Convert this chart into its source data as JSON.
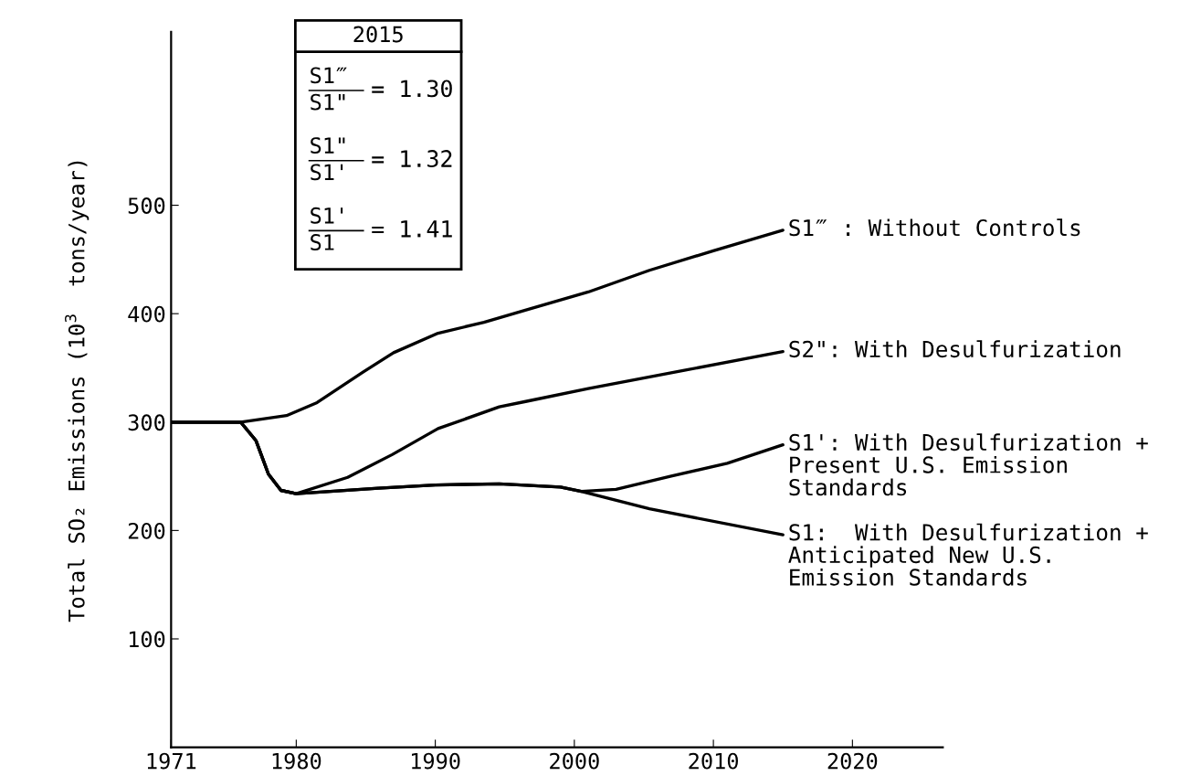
{
  "chart_data": {
    "type": "line",
    "ylabel": "Total SO₂ Emissions (10$^{3}$  tons/year)",
    "xlim": [
      1971,
      2026.5
    ],
    "xticks": [
      1971,
      1980,
      1990,
      2000,
      2010,
      2020
    ],
    "ylim": [
      0,
      660
    ],
    "yticks": [
      100,
      200,
      300,
      400,
      500
    ],
    "grid": false,
    "legend": false,
    "marker": "none",
    "line_style": "solid",
    "annotations": [
      "2015",
      "S1‴",
      "S1\"",
      "= 1.30",
      "S1\"",
      "S1'",
      "= 1.32",
      "S1'",
      "S1",
      "= 1.41"
    ],
    "series": [
      {
        "name": "S1‴ : Without Controls",
        "color": "#000000",
        "x": [
          1971,
          1976,
          1979.3,
          1981.5,
          1984.8,
          1987,
          1990.2,
          1993.5,
          1996.7,
          2001,
          2005.4,
          2010,
          2015
        ],
        "values": [
          300,
          300,
          306,
          318,
          346,
          364,
          382,
          392,
          404,
          420,
          440,
          458,
          477
        ]
      },
      {
        "name": "S2\": With Desulfurization",
        "color": "#000000",
        "x": [
          1971,
          1976,
          1977.1,
          1978,
          1978.9,
          1980,
          1983.7,
          1986.9,
          1990.2,
          1994.6,
          1996.5,
          2001,
          2008,
          2015
        ],
        "values": [
          300,
          300,
          283,
          252,
          237,
          234,
          249,
          270,
          294,
          314,
          319,
          331,
          348,
          365
        ]
      },
      {
        "name": "S1': With Desulfurization +\nPresent U.S. Emission\nStandards",
        "color": "#000000",
        "x": [
          1971,
          1976,
          1977.1,
          1978,
          1978.9,
          1980,
          1985.9,
          1990,
          1994.6,
          1999,
          2000.5,
          2003,
          2006.9,
          2011,
          2015
        ],
        "values": [
          300,
          300,
          283,
          252,
          237,
          234,
          239,
          242,
          243,
          240,
          236,
          238,
          250,
          262,
          279
        ]
      },
      {
        "name": "S1:  With Desulfurization +\nAnticipated New U.S.\nEmission Standards",
        "color": "#000000",
        "x": [
          1971,
          1976,
          1977.1,
          1978,
          1978.9,
          1980,
          1985.9,
          1990,
          1994.6,
          1999,
          2000.5,
          2005.4,
          2015
        ],
        "values": [
          300,
          300,
          283,
          252,
          237,
          234,
          239,
          242,
          243,
          240,
          236,
          220,
          196
        ]
      }
    ]
  }
}
